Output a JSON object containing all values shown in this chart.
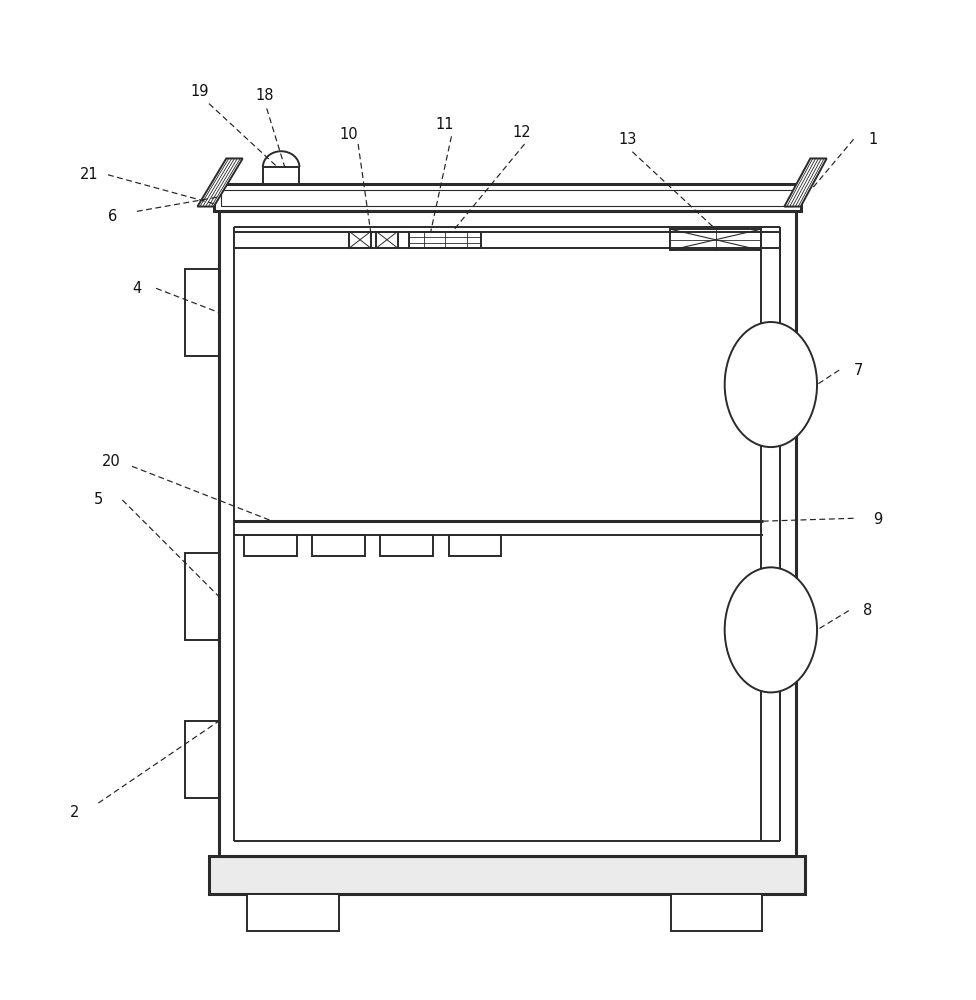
{
  "bg_color": "#ffffff",
  "lc": "#2a2a2a",
  "lw": 1.4,
  "lw2": 2.2,
  "lw3": 0.8,
  "fig_w": 9.76,
  "fig_h": 10.0,
  "bx1": 0.22,
  "bx2": 0.82,
  "by1": 0.13,
  "by2": 0.8,
  "ins": 0.016
}
